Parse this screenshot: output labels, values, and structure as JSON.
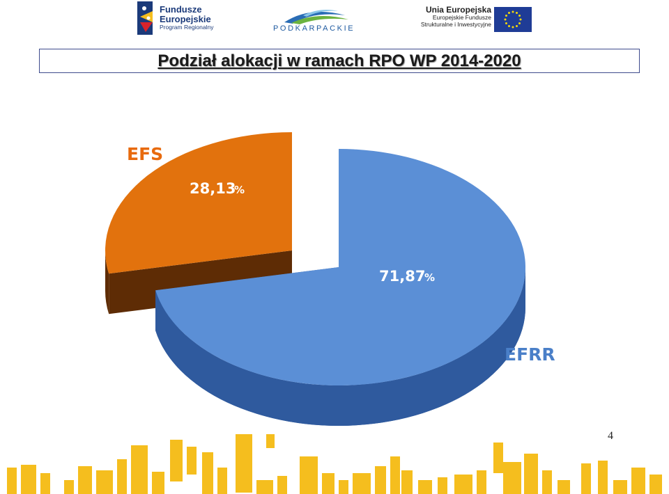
{
  "header": {
    "logo_fe": {
      "line1": "Fundusze",
      "line2": "Europejskie",
      "line3": "Program Regionalny"
    },
    "logo_pk": {
      "word": "PODKARPACKIE"
    },
    "logo_ue": {
      "line1": "Unia Europejska",
      "line2": "Europejskie Fundusze",
      "line3": "Strukturalne i Inwestycyjne"
    }
  },
  "title": "Podział alokacji w ramach RPO WP 2014-2020",
  "page_number": "4",
  "colors": {
    "efrr_top": "#5b8fd6",
    "efrr_side": "#2f5a9e",
    "efs_top": "#e2720d",
    "efs_side": "#5e2c05",
    "footer_bars": "#f5be1e",
    "title_border": "#3d4a8c"
  },
  "chart_data": {
    "type": "pie",
    "title": "Podział alokacji w ramach RPO WP 2014-2020",
    "exploded": "EFS",
    "style": "3d",
    "slices": [
      {
        "name": "EFRR",
        "value": 71.87,
        "label": "71,87",
        "unit": "%"
      },
      {
        "name": "EFS",
        "value": 28.13,
        "label": "28,13",
        "unit": "%"
      }
    ]
  }
}
